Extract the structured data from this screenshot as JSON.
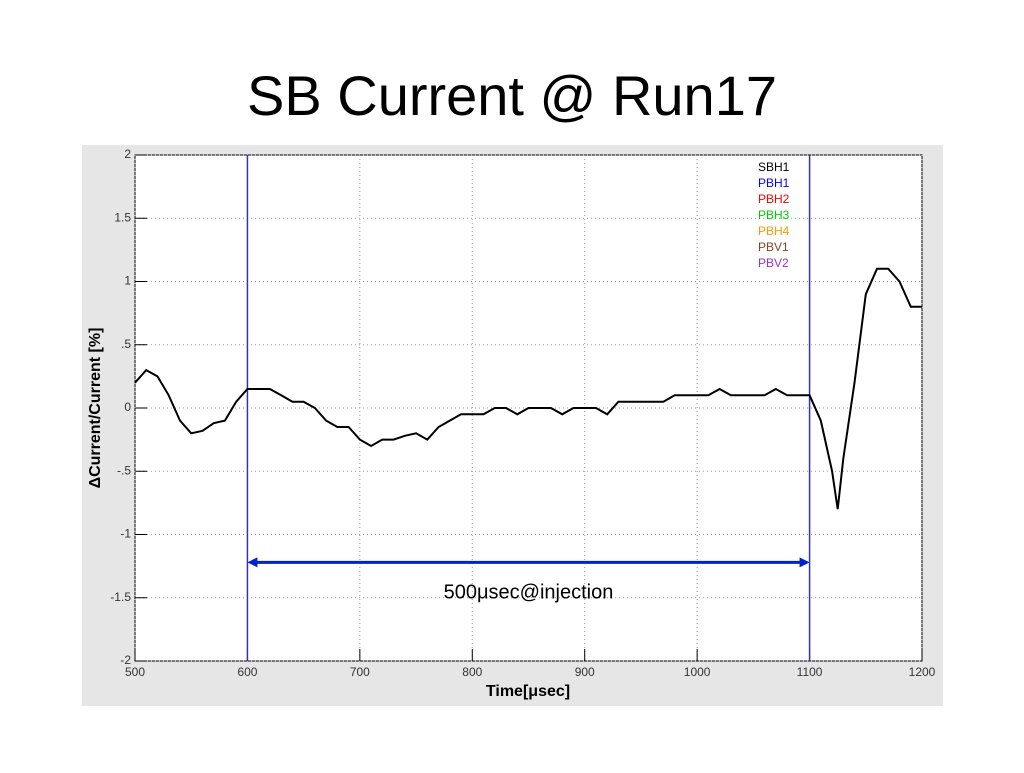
{
  "chart_data": {
    "type": "line",
    "title": "SB Current @ Run17",
    "x_label": "Time[μsec]",
    "y_label": "ΔCurrent/Current [%]",
    "x": [
      500,
      510,
      520,
      530,
      540,
      550,
      560,
      570,
      580,
      590,
      600,
      610,
      620,
      630,
      640,
      650,
      660,
      670,
      680,
      690,
      700,
      710,
      720,
      730,
      740,
      750,
      760,
      770,
      780,
      790,
      800,
      810,
      820,
      830,
      840,
      850,
      860,
      870,
      880,
      890,
      900,
      910,
      920,
      930,
      940,
      950,
      960,
      970,
      980,
      990,
      1000,
      1010,
      1020,
      1030,
      1040,
      1050,
      1060,
      1070,
      1080,
      1090,
      1100,
      1110,
      1120,
      1125,
      1130,
      1140,
      1150,
      1160,
      1170,
      1180,
      1190,
      1200
    ],
    "series": [
      {
        "name": "SBH1",
        "color": "#000000",
        "values": [
          0.2,
          0.3,
          0.25,
          0.1,
          -0.1,
          -0.2,
          -0.18,
          -0.12,
          -0.1,
          0.05,
          0.15,
          0.15,
          0.15,
          0.1,
          0.05,
          0.05,
          0.0,
          -0.1,
          -0.15,
          -0.15,
          -0.25,
          -0.3,
          -0.25,
          -0.25,
          -0.22,
          -0.2,
          -0.25,
          -0.15,
          -0.1,
          -0.05,
          -0.05,
          -0.05,
          0.0,
          0.0,
          -0.05,
          0.0,
          0.0,
          0.0,
          -0.05,
          0.0,
          0.0,
          0.0,
          -0.05,
          0.05,
          0.05,
          0.05,
          0.05,
          0.05,
          0.1,
          0.1,
          0.1,
          0.1,
          0.15,
          0.1,
          0.1,
          0.1,
          0.1,
          0.15,
          0.1,
          0.1,
          0.1,
          -0.1,
          -0.5,
          -0.8,
          -0.4,
          0.2,
          0.9,
          1.1,
          1.1,
          1.0,
          0.8,
          0.8
        ]
      }
    ],
    "legend": [
      {
        "name": "SBH1",
        "color": "#000000"
      },
      {
        "name": "PBH1",
        "color": "#0000ff"
      },
      {
        "name": "PBH2",
        "color": "#ff0000"
      },
      {
        "name": "PBH3",
        "color": "#00cc00"
      },
      {
        "name": "PBH4",
        "color": "#ff9900"
      },
      {
        "name": "PBV1",
        "color": "#884422"
      },
      {
        "name": "PBV2",
        "color": "#9933cc"
      }
    ],
    "vlines": [
      {
        "value": 600,
        "color": "#3333aa"
      },
      {
        "value": 1100,
        "color": "#3333aa"
      }
    ],
    "annotation": {
      "text": "500μsec@injection",
      "x": [
        600,
        1100
      ],
      "y": -1.22,
      "color": "#0022cc"
    },
    "xlim": [
      500,
      1200
    ],
    "xticks": [
      500,
      600,
      700,
      800,
      900,
      1000,
      1100,
      1200
    ],
    "ylim": [
      -2,
      2
    ],
    "yticks": [
      -2,
      -1.5,
      -1,
      {
        "value": -0.5,
        "label": "-.5"
      },
      0,
      {
        "value": 0.5,
        "label": ".5"
      },
      1,
      1.5,
      2
    ],
    "grid": true
  }
}
